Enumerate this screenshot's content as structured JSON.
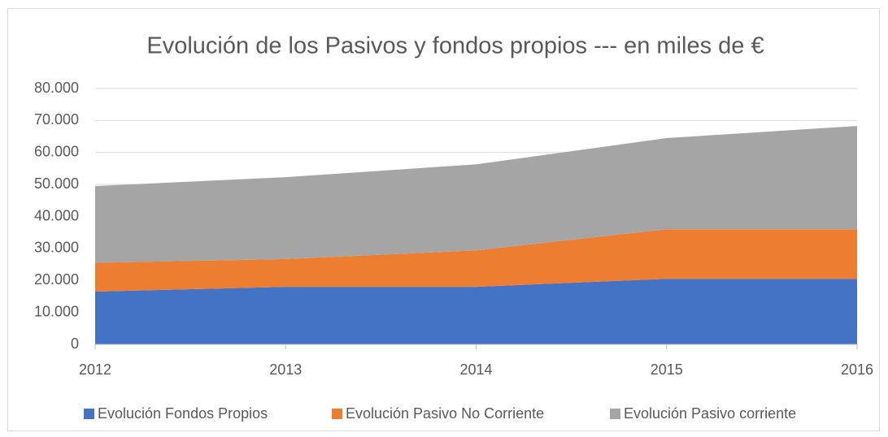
{
  "chart_data": {
    "type": "stacked_area",
    "title": "Evolución de los Pasivos y fondos propios --- en miles de €",
    "categories": [
      "2012",
      "2013",
      "2014",
      "2015",
      "2016"
    ],
    "series": [
      {
        "name": "Evolución Fondos Propios",
        "color": "#4472c4",
        "values": [
          16500,
          18000,
          18000,
          20500,
          20500
        ]
      },
      {
        "name": "Evolución Pasivo No Corriente",
        "color": "#ed7d31",
        "values": [
          9000,
          8700,
          11400,
          15500,
          15500
        ]
      },
      {
        "name": "Evolución Pasivo corriente",
        "color": "#a5a5a5",
        "values": [
          24000,
          25600,
          26900,
          28500,
          32300
        ]
      }
    ],
    "ylim": [
      0,
      80000
    ],
    "yticks": [
      0,
      {
        "value": 10000,
        "label": "10.000"
      },
      {
        "value": 20000,
        "label": "20.000"
      },
      {
        "value": 30000,
        "label": "30.000"
      },
      {
        "value": 40000,
        "label": "40.000"
      },
      {
        "value": 50000,
        "label": "50.000"
      },
      {
        "value": 60000,
        "label": "60.000"
      },
      {
        "value": 70000,
        "label": "70.000"
      },
      {
        "value": 80000,
        "label": "80.000"
      }
    ],
    "grid": true,
    "legend": "bottom"
  }
}
